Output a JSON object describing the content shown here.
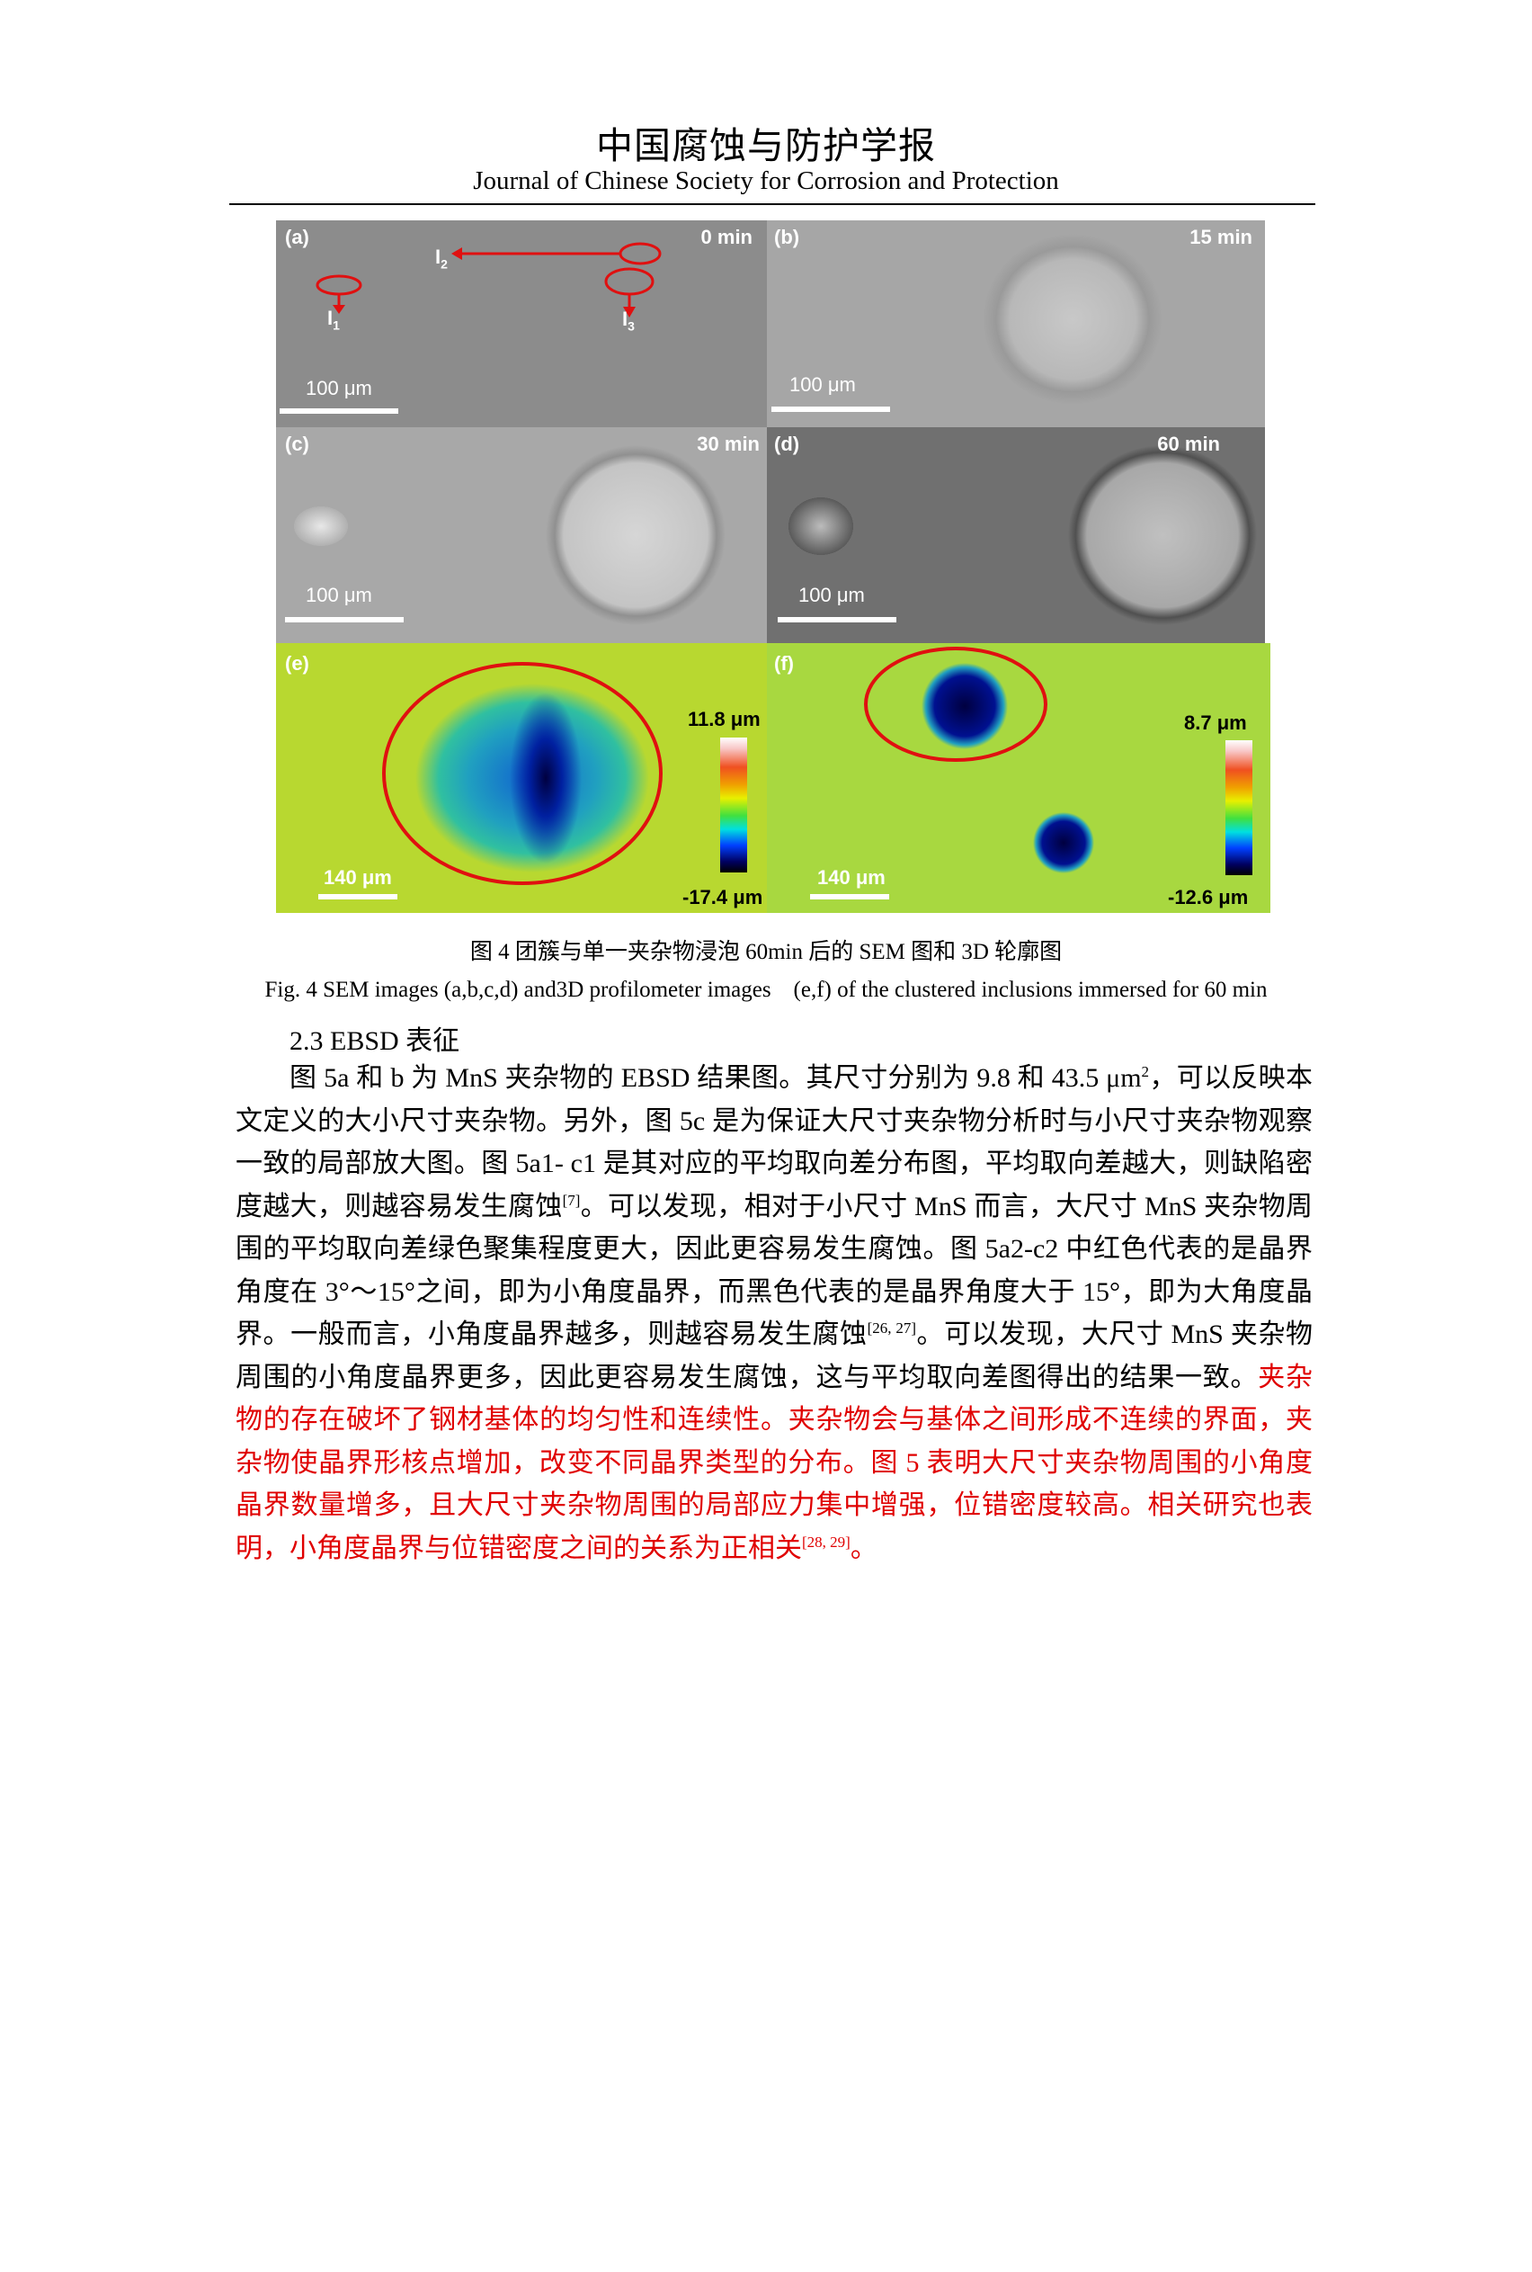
{
  "header": {
    "title_cn": "中国腐蚀与防护学报",
    "title_en": "Journal of Chinese Society for Corrosion and Protection"
  },
  "figure": {
    "panels": [
      {
        "label": "(a)",
        "time": "0 min",
        "scale": "100 μm",
        "markers": [
          "I",
          "1",
          "I",
          "2",
          "I",
          "3"
        ]
      },
      {
        "label": "(b)",
        "time": "15 min",
        "scale": "100 μm"
      },
      {
        "label": "(c)",
        "time": "30 min",
        "scale": "100 μm"
      },
      {
        "label": "(d)",
        "time": "60 min",
        "scale": "100 μm"
      },
      {
        "label": "(e)",
        "scale": "140 μm",
        "cb_max": "11.8 μm",
        "cb_min": "-17.4 μm"
      },
      {
        "label": "(f)",
        "scale": "140 μm",
        "cb_max": "8.7 μm",
        "cb_min": "-12.6 μm"
      }
    ],
    "annotation_color": "#e01010",
    "caption_cn": "图 4  团簇与单一夹杂物浸泡 60min 后的 SEM 图和 3D 轮廓图",
    "caption_en": "Fig. 4 SEM images (a,b,c,d) and3D profilometer images    (e,f) of the clustered inclusions immersed for 60 min"
  },
  "section": {
    "heading": "2.3 EBSD 表征",
    "p1": "图 5a 和 b 为 MnS 夹杂物的 EBSD 结果图。其尺寸分别为 9.8 和 43.5 μm",
    "p1_sup": "2",
    "p2": "，可以反映本文定义的大小尺寸夹杂物。另外，图 5c 是为保证大尺寸夹杂物分析时与小尺寸夹杂物观察一致的局部放大图。图 5a1- c1  是其对应的平均取向差分布图，平均取向差越大，则缺陷密度越大，则越容易发生腐蚀",
    "ref1": "[7]",
    "p3": "。可以发现，相对于小尺寸 MnS 而言，大尺寸 MnS 夹杂物周围的平均取向差绿色聚集程度更大，因此更容易发生腐蚀。图 5a2-c2  中红色代表的是晶界角度在 3°～15°之间，即为小角度晶界，而黑色代表的是晶界角度大于 15°，即为大角度晶界。一般而言，小角度晶界越多，则越容易发生腐蚀",
    "ref2": "[26, 27]",
    "p4": "。可以发现，大尺寸 MnS 夹杂物周围的小角度晶界更多，因此更容易发生腐蚀，这与平均取向差图得出的结果一致。",
    "red1": "夹杂物的存在破坏了钢材基体的均匀性和连续性。夹杂物会与基体之间形成不连续的界面，夹杂物使晶界形核点增加，改变不同晶界类型的分布。图 5 表明大尺寸夹杂物周围的小角度晶界数量增多，且大尺寸夹杂物周围的局部应力集中增强，位错密度较高。相关研究也表明，小角度晶界与位错密度之间的关系为正相关",
    "ref3": "[28, 29]",
    "red2": "。",
    "red_color": "#e00000"
  }
}
